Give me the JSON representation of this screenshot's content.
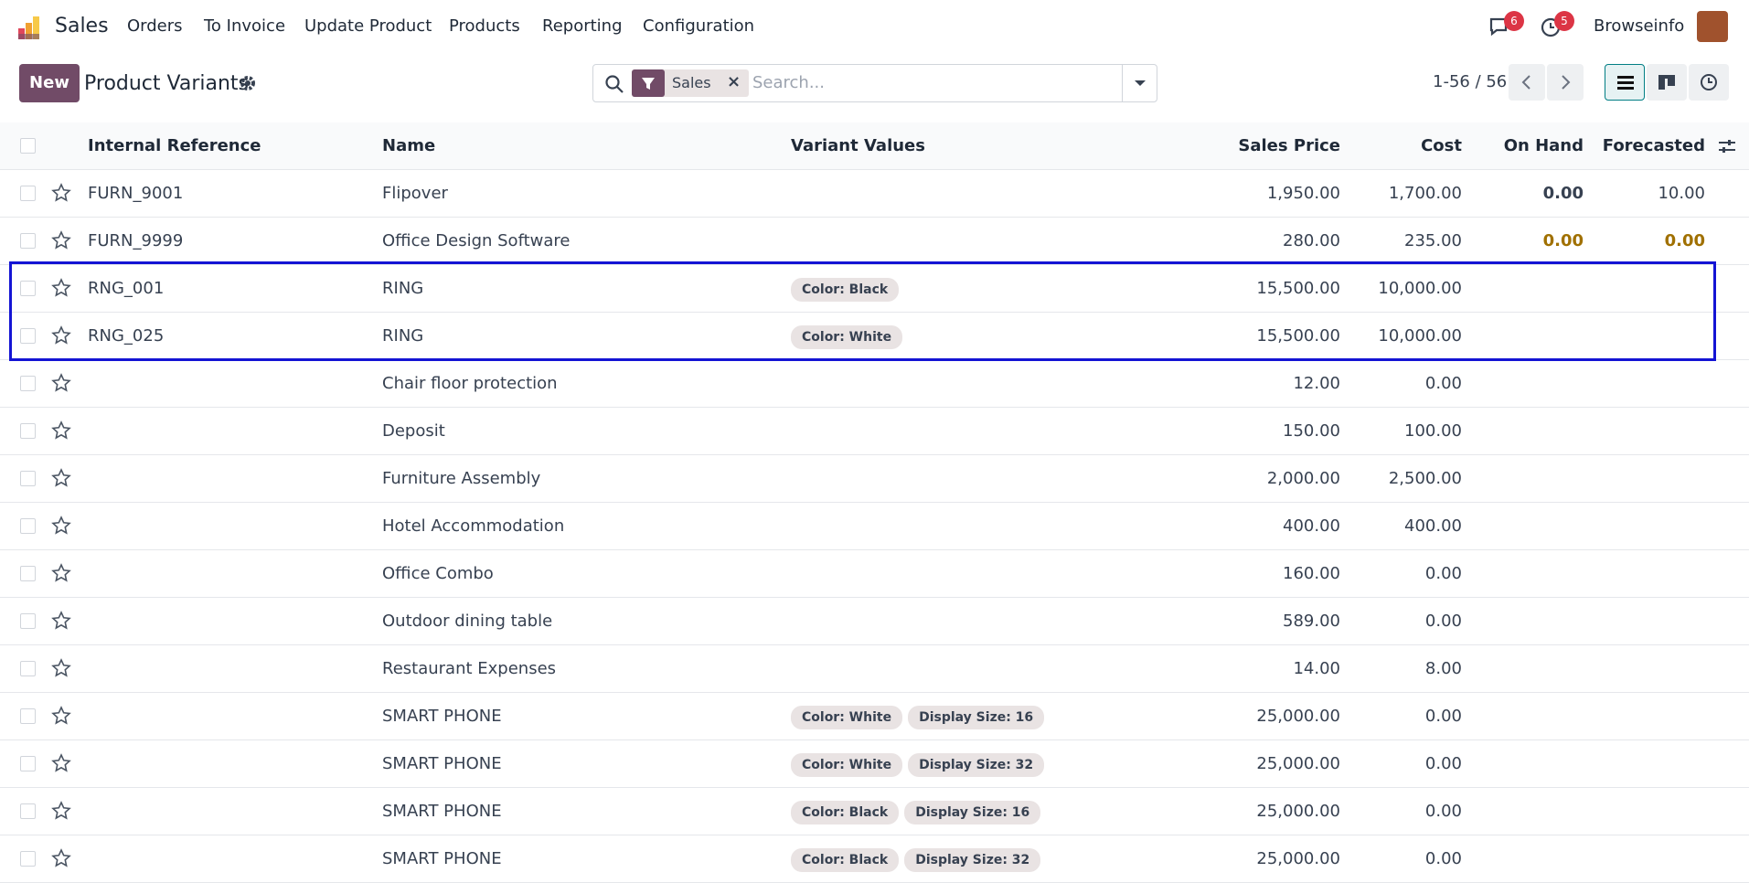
{
  "navbar": {
    "app": "Sales",
    "menu": [
      "Orders",
      "To Invoice",
      "Update Product",
      "Products",
      "Reporting",
      "Configuration"
    ],
    "messages_count": "6",
    "activities_count": "5",
    "user": "Browseinfo"
  },
  "control_panel": {
    "new_button": "New",
    "title": "Product Variants",
    "filter_facet": "Sales",
    "search_placeholder": "Search...",
    "pager": "1-56 / 56"
  },
  "table": {
    "columns": [
      "Internal Reference",
      "Name",
      "Variant Values",
      "Sales Price",
      "Cost",
      "On Hand",
      "Forecasted"
    ],
    "rows": [
      {
        "ref": "FURN_9001",
        "name": "Flipover",
        "variants": [],
        "price": "1,950.00",
        "cost": "1,700.00",
        "on_hand": "0.00",
        "forecasted": "10.00"
      },
      {
        "ref": "FURN_9999",
        "name": "Office Design Software",
        "variants": [],
        "price": "280.00",
        "cost": "235.00",
        "on_hand": "0.00",
        "forecasted": "0.00",
        "stock_color": "#a07000"
      },
      {
        "ref": "RNG_001",
        "name": "RING",
        "variants": [
          "Color: Black"
        ],
        "price": "15,500.00",
        "cost": "10,000.00"
      },
      {
        "ref": "RNG_025",
        "name": "RING",
        "variants": [
          "Color: White"
        ],
        "price": "15,500.00",
        "cost": "10,000.00"
      },
      {
        "name": "Chair floor protection",
        "variants": [],
        "price": "12.00",
        "cost": "0.00"
      },
      {
        "name": "Deposit",
        "variants": [],
        "price": "150.00",
        "cost": "100.00"
      },
      {
        "name": "Furniture Assembly",
        "variants": [],
        "price": "2,000.00",
        "cost": "2,500.00"
      },
      {
        "name": "Hotel Accommodation",
        "variants": [],
        "price": "400.00",
        "cost": "400.00"
      },
      {
        "name": "Office Combo",
        "variants": [],
        "price": "160.00",
        "cost": "0.00"
      },
      {
        "name": "Outdoor dining table",
        "variants": [],
        "price": "589.00",
        "cost": "0.00"
      },
      {
        "name": "Restaurant Expenses",
        "variants": [],
        "price": "14.00",
        "cost": "8.00"
      },
      {
        "name": "SMART PHONE",
        "variants": [
          "Color: White",
          "Display Size: 16"
        ],
        "price": "25,000.00",
        "cost": "0.00"
      },
      {
        "name": "SMART PHONE",
        "variants": [
          "Color: White",
          "Display Size: 32"
        ],
        "price": "25,000.00",
        "cost": "0.00"
      },
      {
        "name": "SMART PHONE",
        "variants": [
          "Color: Black",
          "Display Size: 16"
        ],
        "price": "25,000.00",
        "cost": "0.00"
      },
      {
        "name": "SMART PHONE",
        "variants": [
          "Color: Black",
          "Display Size: 32"
        ],
        "price": "25,000.00",
        "cost": "0.00"
      }
    ]
  }
}
